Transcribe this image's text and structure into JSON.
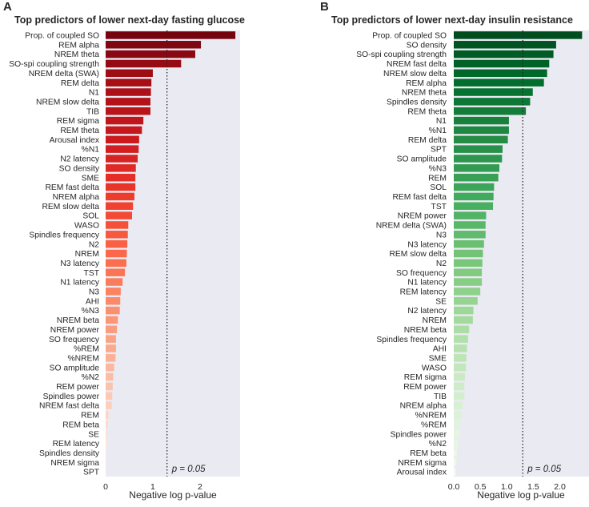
{
  "chart_data": [
    {
      "type": "bar",
      "orientation": "horizontal",
      "panel_letter": "A",
      "title": "Top predictors of lower next-day fasting glucose",
      "xlabel": "Negative log p-value",
      "ylabel": "",
      "xlim": [
        0,
        2.85
      ],
      "xticks": [
        0,
        1,
        2
      ],
      "grid": false,
      "colormap": "Reds",
      "threshold": {
        "value": 1.301,
        "label": "p = 0.05"
      },
      "categories": [
        "Prop. of coupled SO",
        "REM alpha",
        "NREM theta",
        "SO-spi coupling strength",
        "NREM delta (SWA)",
        "REM delta",
        "N1",
        "NREM slow delta",
        "TIB",
        "REM sigma",
        "REM theta",
        "Arousal index",
        "%N1",
        "N2 latency",
        "SO density",
        "SME",
        "REM fast delta",
        "NREM alpha",
        "REM slow delta",
        "SOL",
        "WASO",
        "Spindles frequency",
        "N2",
        "NREM",
        "N3 latency",
        "TST",
        "N1 latency",
        "N3",
        "AHI",
        "%N3",
        "NREM beta",
        "NREM power",
        "SO frequency",
        "%REM",
        "%NREM",
        "SO amplitude",
        "%N2",
        "REM power",
        "Spindles power",
        "NREM fast delta",
        "REM",
        "REM beta",
        "SE",
        "REM latency",
        "Spindles density",
        "NREM sigma",
        "SPT"
      ],
      "values": [
        2.75,
        2.02,
        1.9,
        1.6,
        1.0,
        0.97,
        0.96,
        0.95,
        0.95,
        0.8,
        0.77,
        0.71,
        0.7,
        0.68,
        0.64,
        0.63,
        0.63,
        0.61,
        0.58,
        0.56,
        0.48,
        0.47,
        0.46,
        0.45,
        0.44,
        0.41,
        0.36,
        0.32,
        0.31,
        0.3,
        0.26,
        0.24,
        0.22,
        0.22,
        0.21,
        0.18,
        0.16,
        0.15,
        0.14,
        0.13,
        0.06,
        0.05,
        0.04,
        0.03,
        0.02,
        0.01,
        0.005
      ]
    },
    {
      "type": "bar",
      "orientation": "horizontal",
      "panel_letter": "B",
      "title": "Top predictors of lower next-day insulin resistance",
      "xlabel": "Negative log p-value",
      "ylabel": "",
      "xlim": [
        0,
        2.55
      ],
      "xticks": [
        0.0,
        0.5,
        1.0,
        1.5,
        2.0
      ],
      "xtick_labels": [
        "0.0",
        "0.5",
        "1.0",
        "1.5",
        "2.0"
      ],
      "grid": false,
      "colormap": "Greens",
      "threshold": {
        "value": 1.301,
        "label": "p = 0.05"
      },
      "categories": [
        "Prop. of coupled SO",
        "SO density",
        "SO-spi coupling strength",
        "NREM fast delta",
        "NREM slow delta",
        "REM alpha",
        "NREM theta",
        "Spindles density",
        "REM theta",
        "N1",
        "%N1",
        "REM delta",
        "SPT",
        "SO amplitude",
        "%N3",
        "REM",
        "SOL",
        "REM fast delta",
        "TST",
        "NREM power",
        "NREM delta (SWA)",
        "N3",
        "N3 latency",
        "REM slow delta",
        "N2",
        "SO frequency",
        "N1 latency",
        "REM latency",
        "SE",
        "N2 latency",
        "NREM",
        "NREM beta",
        "Spindles frequency",
        "AHI",
        "SME",
        "WASO",
        "REM sigma",
        "REM power",
        "TIB",
        "NREM alpha",
        "%NREM",
        "%REM",
        "Spindles power",
        "%N2",
        "REM beta",
        "NREM sigma",
        "Arousal index"
      ],
      "values": [
        2.42,
        1.93,
        1.88,
        1.8,
        1.76,
        1.7,
        1.49,
        1.44,
        1.36,
        1.04,
        1.04,
        1.02,
        0.92,
        0.91,
        0.86,
        0.84,
        0.76,
        0.75,
        0.74,
        0.61,
        0.6,
        0.6,
        0.57,
        0.55,
        0.54,
        0.53,
        0.53,
        0.5,
        0.45,
        0.37,
        0.36,
        0.29,
        0.27,
        0.25,
        0.24,
        0.23,
        0.21,
        0.2,
        0.2,
        0.17,
        0.15,
        0.13,
        0.12,
        0.08,
        0.06,
        0.05,
        0.04
      ]
    }
  ]
}
